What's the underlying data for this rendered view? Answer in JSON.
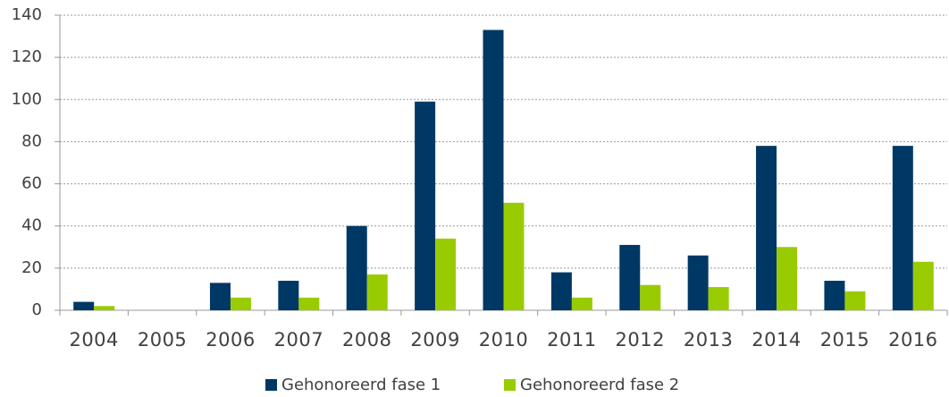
{
  "chart_data": {
    "type": "bar",
    "categories": [
      "2004",
      "2005",
      "2006",
      "2007",
      "2008",
      "2009",
      "2010",
      "2011",
      "2012",
      "2013",
      "2014",
      "2015",
      "2016"
    ],
    "series": [
      {
        "name": "Gehonoreerd fase 1",
        "color": "#003865",
        "values": [
          4,
          0,
          13,
          14,
          40,
          99,
          133,
          18,
          31,
          26,
          78,
          14,
          78
        ]
      },
      {
        "name": "Gehonoreerd fase 2",
        "color": "#99cc00",
        "values": [
          2,
          0,
          6,
          6,
          17,
          34,
          51,
          6,
          12,
          11,
          30,
          9,
          23
        ]
      }
    ],
    "ylim": [
      0,
      140
    ],
    "yticks": [
      0,
      20,
      40,
      60,
      80,
      100,
      120,
      140
    ],
    "grid": true,
    "legend": "bottom"
  }
}
